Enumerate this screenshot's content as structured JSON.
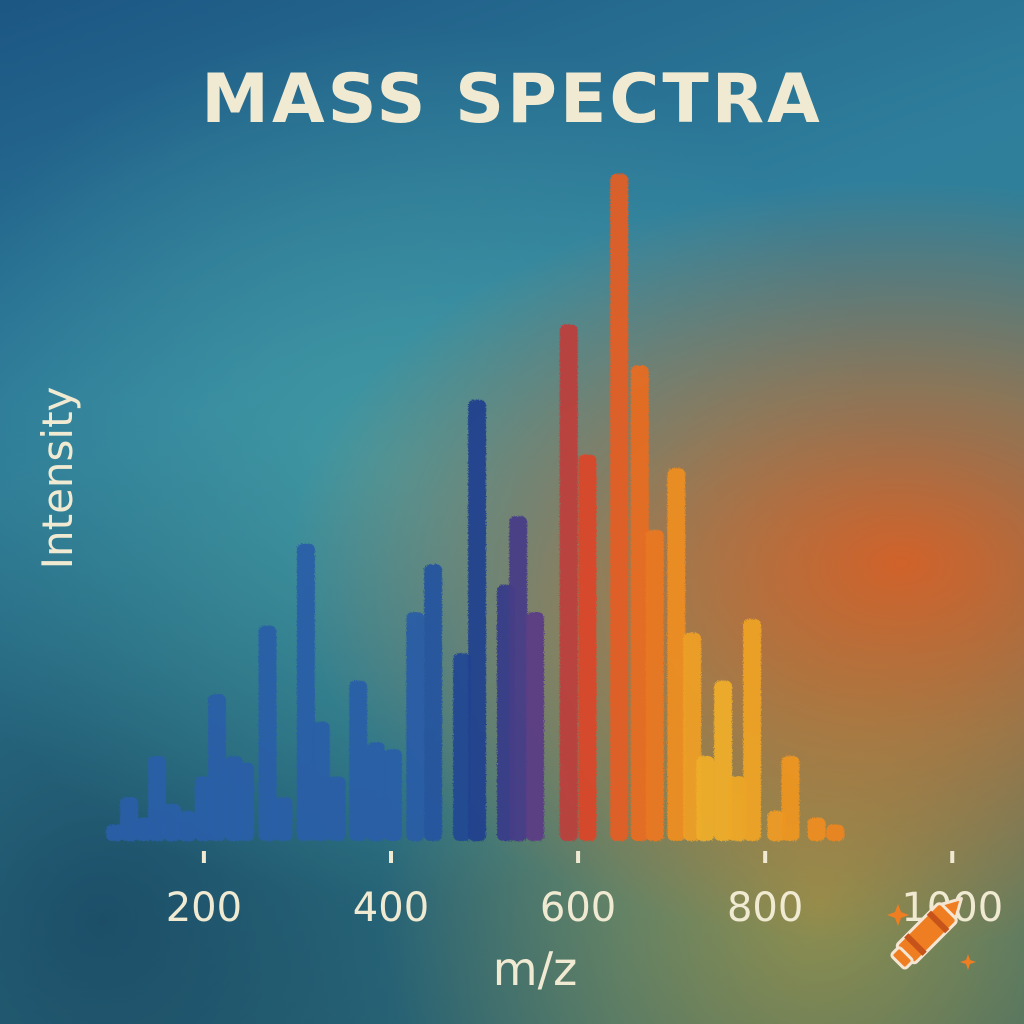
{
  "chart_data": {
    "type": "bar",
    "title": "MASS SPECTRA",
    "xlabel": "m/z",
    "ylabel": "Intensity",
    "xlim": [
      90,
      1035
    ],
    "ylim": [
      0,
      100
    ],
    "xticks": [
      200,
      400,
      600,
      800,
      1000
    ],
    "xtick_labels": [
      "200",
      "400",
      "600",
      "800",
      "1000"
    ],
    "grid": false,
    "legend": "none",
    "colors": {
      "blue": "#2a5fa8",
      "navy": "#1f3f8c",
      "purple": "#5c3d86",
      "red": "#d8402a",
      "orange": "#ec7e1f",
      "yellow": "#efb22a",
      "axis": "#f1ead2"
    },
    "points": [
      {
        "x": 105,
        "y": 3
      },
      {
        "x": 120,
        "y": 7
      },
      {
        "x": 136,
        "y": 4
      },
      {
        "x": 150,
        "y": 13
      },
      {
        "x": 166,
        "y": 6
      },
      {
        "x": 182,
        "y": 5
      },
      {
        "x": 200,
        "y": 10
      },
      {
        "x": 214,
        "y": 22
      },
      {
        "x": 232,
        "y": 13
      },
      {
        "x": 244,
        "y": 12
      },
      {
        "x": 268,
        "y": 32
      },
      {
        "x": 285,
        "y": 7
      },
      {
        "x": 309,
        "y": 44
      },
      {
        "x": 325,
        "y": 18
      },
      {
        "x": 342,
        "y": 10
      },
      {
        "x": 365,
        "y": 24
      },
      {
        "x": 384,
        "y": 15
      },
      {
        "x": 402,
        "y": 14
      },
      {
        "x": 426,
        "y": 34
      },
      {
        "x": 445,
        "y": 41
      },
      {
        "x": 476,
        "y": 28
      },
      {
        "x": 492,
        "y": 65
      },
      {
        "x": 523,
        "y": 38
      },
      {
        "x": 536,
        "y": 48
      },
      {
        "x": 554,
        "y": 34
      },
      {
        "x": 590,
        "y": 76
      },
      {
        "x": 610,
        "y": 57
      },
      {
        "x": 644,
        "y": 98
      },
      {
        "x": 666,
        "y": 70
      },
      {
        "x": 682,
        "y": 46
      },
      {
        "x": 705,
        "y": 55
      },
      {
        "x": 722,
        "y": 31
      },
      {
        "x": 736,
        "y": 13
      },
      {
        "x": 755,
        "y": 24
      },
      {
        "x": 770,
        "y": 10
      },
      {
        "x": 786,
        "y": 33
      },
      {
        "x": 812,
        "y": 5
      },
      {
        "x": 827,
        "y": 13
      },
      {
        "x": 855,
        "y": 4
      },
      {
        "x": 875,
        "y": 3
      }
    ]
  },
  "logo": {
    "name": "crayon-logo"
  }
}
